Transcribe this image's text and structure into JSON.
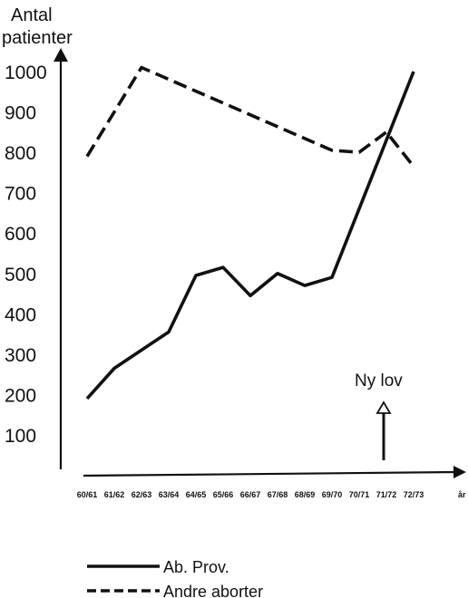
{
  "chart_data": {
    "type": "line",
    "ylabel_lines": [
      "Antal",
      "patienter"
    ],
    "ylim": [
      100,
      1000
    ],
    "yticks": [
      "100",
      "200",
      "300",
      "400",
      "500",
      "600",
      "700",
      "800",
      "900",
      "1000"
    ],
    "categories": [
      "60/61",
      "61/62",
      "62/63",
      "63/64",
      "64/65",
      "65/66",
      "66/67",
      "67/68",
      "68/69",
      "69/70",
      "70/71",
      "71/72",
      "72/73"
    ],
    "x_axis_suffix": "år",
    "series": [
      {
        "name": "Ab. Prov.",
        "style": "solid",
        "color": "#111111",
        "values": [
          190,
          265,
          310,
          355,
          495,
          515,
          445,
          500,
          470,
          490,
          null,
          null,
          null
        ],
        "extra_points": [
          {
            "x": 12.0,
            "y": 1000
          }
        ]
      },
      {
        "name": "Andre aborter",
        "style": "dashed",
        "color": "#111111",
        "values": [
          790,
          null,
          1010,
          null,
          null,
          null,
          null,
          null,
          null,
          805,
          800,
          850,
          765
        ]
      }
    ],
    "annotation": {
      "text": "Ny lov",
      "at_category": "70/71"
    },
    "legend_position": "bottom-center"
  }
}
